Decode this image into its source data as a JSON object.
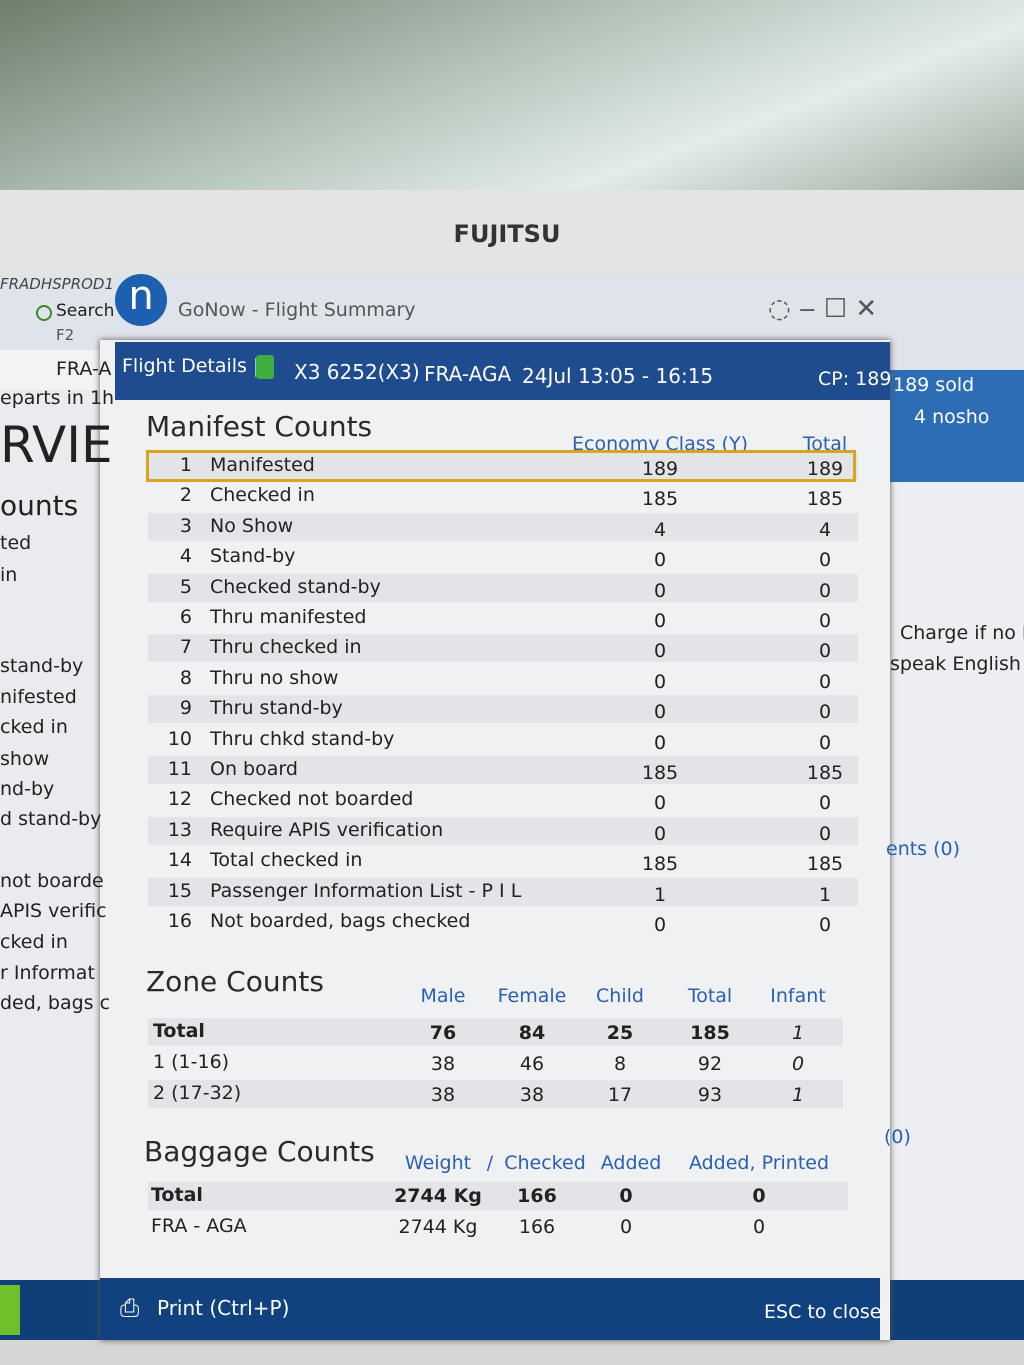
{
  "monitor": {
    "brand": "FUJITSU"
  },
  "window": {
    "app_title": "GoNow - Flight Summary",
    "logo": "n",
    "server": "FRADHSPROD1",
    "search": "Search",
    "shortcut": "F2"
  },
  "header": {
    "section": "Flight Details |",
    "flight": "X3 6252(X3)",
    "route": "FRA-AGA",
    "schedule": "24Jul 13:05 - 16:15",
    "capacity": "CP: 189"
  },
  "manifest": {
    "title": "Manifest Counts",
    "columns": [
      "Economy Class (Y)",
      "Total"
    ],
    "rows": [
      [
        "1",
        "Manifested",
        189,
        189
      ],
      [
        "2",
        "Checked in",
        185,
        185
      ],
      [
        "3",
        "No Show",
        4,
        4
      ],
      [
        "4",
        "Stand-by",
        0,
        0
      ],
      [
        "5",
        "Checked stand-by",
        0,
        0
      ],
      [
        "6",
        "Thru manifested",
        0,
        0
      ],
      [
        "7",
        "Thru checked in",
        0,
        0
      ],
      [
        "8",
        "Thru no show",
        0,
        0
      ],
      [
        "9",
        "Thru stand-by",
        0,
        0
      ],
      [
        "10",
        "Thru chkd stand-by",
        0,
        0
      ],
      [
        "11",
        "On board",
        185,
        185
      ],
      [
        "12",
        "Checked not boarded",
        0,
        0
      ],
      [
        "13",
        "Require APIS verification",
        0,
        0
      ],
      [
        "14",
        "Total checked in",
        185,
        185
      ],
      [
        "15",
        "Passenger Information List - P I L",
        1,
        1
      ],
      [
        "16",
        "Not boarded, bags checked",
        0,
        0
      ]
    ]
  },
  "zones": {
    "title": "Zone Counts",
    "columns": [
      "Male",
      "Female",
      "Child",
      "Total",
      "Infant"
    ],
    "rows": [
      [
        "Total",
        76,
        84,
        25,
        185,
        1
      ],
      [
        "1 (1-16)",
        38,
        46,
        8,
        92,
        0
      ],
      [
        "2 (17-32)",
        38,
        38,
        17,
        93,
        1
      ]
    ]
  },
  "baggage": {
    "title": "Baggage Counts",
    "columns": [
      "Weight",
      "/",
      "Checked",
      "Added",
      "Added, Printed"
    ],
    "rows": [
      [
        "Total",
        "2744 Kg",
        166,
        0,
        0
      ],
      [
        "FRA - AGA",
        "2744 Kg",
        166,
        0,
        0
      ]
    ]
  },
  "footer": {
    "print": "Print (Ctrl+P)",
    "close": "ESC to close"
  },
  "background_left": [
    "FRA-A",
    "eparts in 1h",
    "RVIE",
    "ounts",
    "ted",
    "in",
    "stand-by",
    "nifested",
    "cked in",
    "show",
    "nd-by",
    "d stand-by",
    "not boarde",
    "APIS verific",
    "cked in",
    "r Informat",
    "ded, bags c"
  ],
  "background_right": [
    "189 sold",
    "4 nosho",
    "Charge if no D",
    "speak English c",
    "ents (0)",
    "(0)"
  ]
}
